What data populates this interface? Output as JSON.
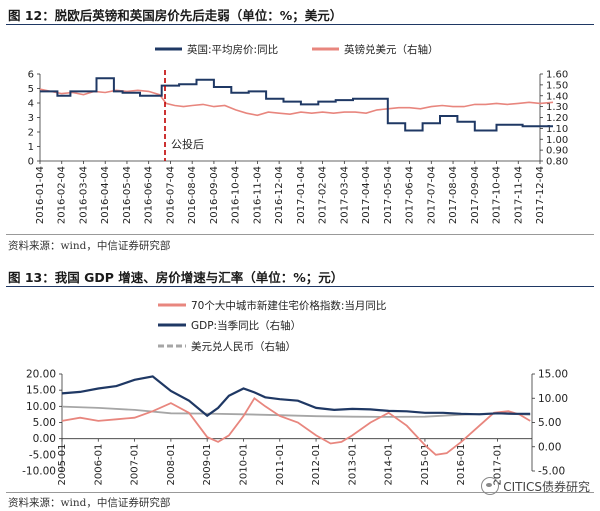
{
  "figure12": {
    "title": "图 12：脱欧后英镑和英国房价先后走弱（单位：%；美元）",
    "source": "资料来源：wind，中信证券研究部"
  },
  "figure13": {
    "title": "图 13：我国 GDP 增速、房价增速与汇率（单位：%；元）",
    "source": "资料来源：wind，中信证券研究部"
  },
  "watermark": "CITICS债券研究",
  "colors": {
    "navy": "#1f3864",
    "salmon": "#e8867e",
    "grey": "#a6a6a6",
    "marker": "#c00000"
  },
  "chart_data": [
    {
      "type": "line",
      "title": "",
      "x_tick_labels": [
        "2016-01-04",
        "2016-02-04",
        "2016-03-04",
        "2016-04-04",
        "2016-05-04",
        "2016-06-04",
        "2016-07-04",
        "2016-08-04",
        "2016-09-04",
        "2016-10-04",
        "2016-11-04",
        "2016-12-04",
        "2017-01-04",
        "2017-02-04",
        "2017-03-04",
        "2017-04-04",
        "2017-05-04",
        "2017-06-04",
        "2017-07-04",
        "2017-08-04",
        "2017-09-04",
        "2017-10-04",
        "2017-11-04",
        "2017-12-04"
      ],
      "y_left": {
        "ticks": [
          "0",
          "1",
          "2",
          "3",
          "4",
          "5",
          "6"
        ],
        "ylim": [
          0,
          6
        ]
      },
      "y_right": {
        "ticks": [
          "0.80",
          "0.90",
          "1.00",
          "1.10",
          "1.20",
          "1.30",
          "1.40",
          "1.50",
          "1.60"
        ],
        "ylim": [
          0.8,
          1.6
        ]
      },
      "legend_position": "top",
      "annotation": {
        "text": "公投后",
        "x_month": 5.75
      },
      "series": [
        {
          "name": "英国:平均房价:同比",
          "axis": "left",
          "x_month": [
            0,
            0.8,
            0.8,
            1.4,
            1.4,
            2.6,
            2.6,
            3.4,
            3.4,
            3.8,
            3.8,
            4.6,
            4.6,
            5.6,
            5.6,
            6.4,
            6.4,
            7.2,
            7.2,
            8.0,
            8.0,
            8.8,
            8.8,
            9.6,
            9.6,
            10.4,
            10.4,
            11.2,
            11.2,
            12.0,
            12.0,
            12.8,
            12.8,
            13.6,
            13.6,
            14.4,
            14.4,
            15.2,
            15.2,
            16.0,
            16.0,
            16.8,
            16.8,
            17.6,
            17.6,
            18.4,
            18.4,
            19.2,
            19.2,
            20.0,
            20.0,
            21.0,
            21.0,
            22.2,
            22.2,
            23.6
          ],
          "values": [
            4.8,
            4.8,
            4.5,
            4.5,
            4.8,
            4.8,
            5.7,
            5.7,
            4.8,
            4.8,
            4.7,
            4.7,
            4.5,
            4.5,
            5.2,
            5.2,
            5.3,
            5.3,
            5.6,
            5.6,
            5.1,
            5.1,
            4.7,
            4.7,
            4.8,
            4.8,
            4.3,
            4.3,
            4.1,
            4.1,
            3.9,
            3.9,
            4.1,
            4.1,
            4.2,
            4.2,
            4.3,
            4.3,
            4.3,
            4.3,
            2.6,
            2.6,
            2.1,
            2.1,
            2.6,
            2.6,
            3.1,
            3.1,
            2.7,
            2.7,
            2.1,
            2.1,
            2.5,
            2.5,
            2.4,
            2.4
          ]
        },
        {
          "name": "英镑兑美元（右轴）",
          "axis": "right",
          "x_month": [
            0,
            0.5,
            1,
            1.5,
            2,
            2.5,
            3,
            3.5,
            4,
            4.5,
            5,
            5.5,
            5.8,
            6.2,
            6.6,
            7,
            7.5,
            8,
            8.5,
            9,
            9.5,
            10,
            10.5,
            11,
            11.5,
            12,
            12.5,
            13,
            13.5,
            14,
            14.5,
            15,
            15.5,
            16,
            16.5,
            17,
            17.5,
            18,
            18.5,
            19,
            19.5,
            20,
            20.5,
            21,
            21.5,
            22,
            22.5,
            23,
            23.6
          ],
          "values": [
            1.46,
            1.44,
            1.42,
            1.43,
            1.41,
            1.44,
            1.43,
            1.45,
            1.44,
            1.45,
            1.44,
            1.41,
            1.33,
            1.31,
            1.3,
            1.31,
            1.32,
            1.3,
            1.31,
            1.27,
            1.24,
            1.22,
            1.25,
            1.24,
            1.23,
            1.25,
            1.24,
            1.25,
            1.24,
            1.25,
            1.25,
            1.24,
            1.27,
            1.28,
            1.29,
            1.29,
            1.28,
            1.3,
            1.31,
            1.3,
            1.3,
            1.32,
            1.32,
            1.33,
            1.32,
            1.33,
            1.34,
            1.33,
            1.34
          ]
        }
      ]
    },
    {
      "type": "line",
      "title": "",
      "x_tick_labels": [
        "2005-01",
        "2006-01",
        "2007-01",
        "2008-01",
        "2009-01",
        "2010-01",
        "2011-01",
        "2012-01",
        "2013-01",
        "2014-01",
        "2015-01",
        "2016-01",
        "2017-01"
      ],
      "y_left": {
        "ticks": [
          "-10.00",
          "-5.00",
          "0.00",
          "5.00",
          "10.00",
          "15.00",
          "20.00"
        ],
        "ylim": [
          -10,
          20
        ]
      },
      "y_right": {
        "ticks": [
          "-5.00",
          "0.00",
          "5.00",
          "10.00",
          "15.00"
        ],
        "ylim": [
          -5,
          15
        ]
      },
      "legend_position": "top",
      "series": [
        {
          "name": "70个大中城市新建住宅价格指数:当月同比",
          "axis": "left",
          "x_year": [
            2005.0,
            2005.5,
            2006.0,
            2006.5,
            2007.0,
            2007.5,
            2008.0,
            2008.5,
            2009.0,
            2009.3,
            2009.6,
            2010.0,
            2010.3,
            2010.6,
            2011.0,
            2011.5,
            2012.0,
            2012.4,
            2012.7,
            2013.0,
            2013.5,
            2014.0,
            2014.5,
            2015.0,
            2015.3,
            2015.6,
            2016.0,
            2016.5,
            2016.9,
            2017.3,
            2017.6,
            2017.9
          ],
          "values": [
            5.5,
            6.5,
            5.5,
            6.0,
            6.5,
            8.5,
            11.0,
            8.0,
            0.5,
            -1.0,
            1.0,
            7.0,
            12.5,
            10.0,
            7.0,
            5.0,
            1.0,
            -1.5,
            -1.0,
            1.0,
            5.0,
            8.0,
            4.0,
            -2.0,
            -5.0,
            -4.5,
            -1.0,
            4.0,
            8.0,
            8.5,
            7.5,
            5.5
          ]
        },
        {
          "name": "GDP:当季同比（右轴）",
          "axis": "right",
          "x_year": [
            2005.0,
            2005.5,
            2006.0,
            2006.5,
            2007.0,
            2007.5,
            2008.0,
            2008.5,
            2009.0,
            2009.3,
            2009.6,
            2010.0,
            2010.3,
            2010.6,
            2011.0,
            2011.5,
            2012.0,
            2012.5,
            2013.0,
            2013.5,
            2014.0,
            2014.5,
            2015.0,
            2015.5,
            2016.0,
            2016.5,
            2017.0,
            2017.5,
            2017.9
          ],
          "values": [
            11.0,
            11.3,
            12.0,
            12.5,
            13.8,
            14.5,
            11.5,
            9.5,
            6.4,
            8.0,
            10.5,
            12.0,
            11.2,
            10.2,
            9.8,
            9.5,
            8.0,
            7.6,
            7.8,
            7.7,
            7.4,
            7.3,
            7.0,
            7.0,
            6.8,
            6.7,
            6.9,
            6.8,
            6.8
          ]
        },
        {
          "name": "美元兑人民币（右轴）",
          "axis": "right",
          "x_year": [
            2005.0,
            2006.0,
            2007.0,
            2008.0,
            2009.0,
            2010.0,
            2011.0,
            2012.0,
            2013.0,
            2014.0,
            2015.0,
            2016.0,
            2017.0,
            2017.9
          ],
          "values": [
            8.27,
            8.0,
            7.6,
            6.9,
            6.83,
            6.7,
            6.5,
            6.3,
            6.2,
            6.15,
            6.2,
            6.6,
            6.9,
            6.6
          ]
        }
      ]
    }
  ]
}
